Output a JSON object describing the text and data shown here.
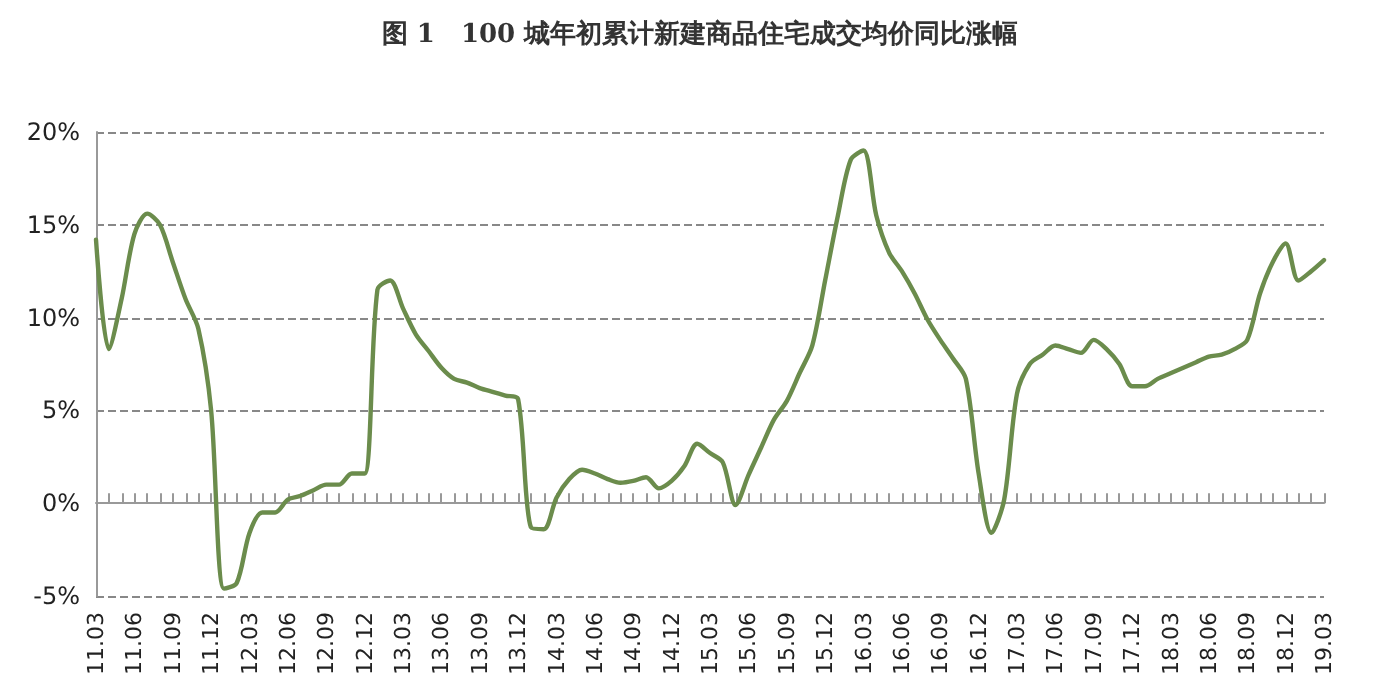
{
  "chart_data": {
    "type": "line",
    "title": "图 1　100 城年初累计新建商品住宅成交均价同比涨幅",
    "categories": [
      "11.03",
      null,
      null,
      "11.06",
      null,
      null,
      "11.09",
      null,
      null,
      "11.12",
      null,
      null,
      "12.03",
      null,
      null,
      "12.06",
      null,
      null,
      "12.09",
      null,
      null,
      "12.12",
      null,
      null,
      "13.03",
      null,
      null,
      "13.06",
      null,
      null,
      "13.09",
      null,
      null,
      "13.12",
      null,
      null,
      "14.03",
      null,
      null,
      "14.06",
      null,
      null,
      "14.09",
      null,
      null,
      "14.12",
      null,
      null,
      "15.03",
      null,
      null,
      "15.06",
      null,
      null,
      "15.09",
      null,
      null,
      "15.12",
      null,
      null,
      "16.03",
      null,
      null,
      "16.06",
      null,
      null,
      "16.09",
      null,
      null,
      "16.12",
      null,
      null,
      "17.03",
      null,
      null,
      "17.06",
      null,
      null,
      "17.09",
      null,
      null,
      "17.12",
      null,
      null,
      "18.03",
      null,
      null,
      "18.06",
      null,
      null,
      "18.09",
      null,
      null,
      "18.12",
      null,
      null,
      "19.03"
    ],
    "series": [
      {
        "color": "#6b8c4c",
        "values": [
          14.2,
          8.3,
          11,
          14.5,
          15.6,
          15,
          13,
          11,
          9.4,
          5,
          -4.6,
          -4.3,
          -1.6,
          -0.5,
          -0.5,
          0.2,
          0.4,
          0.7,
          1.0,
          1.0,
          1.6,
          1.6,
          11.5,
          12.0,
          10.5,
          9.1,
          8.2,
          7.3,
          6.7,
          6.5,
          6.2,
          6.0,
          5.8,
          5.6,
          -1.3,
          -1.4,
          0.3,
          1.3,
          1.8,
          1.6,
          1.3,
          1.1,
          1.2,
          1.4,
          0.8,
          1.2,
          2.0,
          3.2,
          2.7,
          2.2,
          -0.1,
          1.5,
          3.0,
          4.5,
          5.5,
          7,
          8.5,
          12,
          15.5,
          18.5,
          19.0,
          15.5,
          13.5,
          12.5,
          11.3,
          9.9,
          8.8,
          7.8,
          6.7,
          1.6,
          -1.6,
          0.2,
          5.9,
          7.5,
          8.0,
          8.5,
          8.3,
          8.1,
          8.8,
          8.3,
          7.5,
          6.3,
          6.3,
          6.7,
          7.0,
          7.3,
          7.6,
          7.9,
          8.0,
          8.3,
          8.8,
          11.3,
          13.0,
          14.0,
          12.0,
          12.5,
          13.1
        ]
      }
    ],
    "ylim": [
      -5,
      20
    ],
    "yticks": [
      {
        "value": -5,
        "label": "-5%"
      },
      {
        "value": 0,
        "label": "0%"
      },
      {
        "value": 5,
        "label": "5%"
      },
      {
        "value": 10,
        "label": "10%"
      },
      {
        "value": 15,
        "label": "15%"
      },
      {
        "value": 20,
        "label": "20%"
      }
    ],
    "grid": "y",
    "marker": "none",
    "line_style": "solid"
  }
}
